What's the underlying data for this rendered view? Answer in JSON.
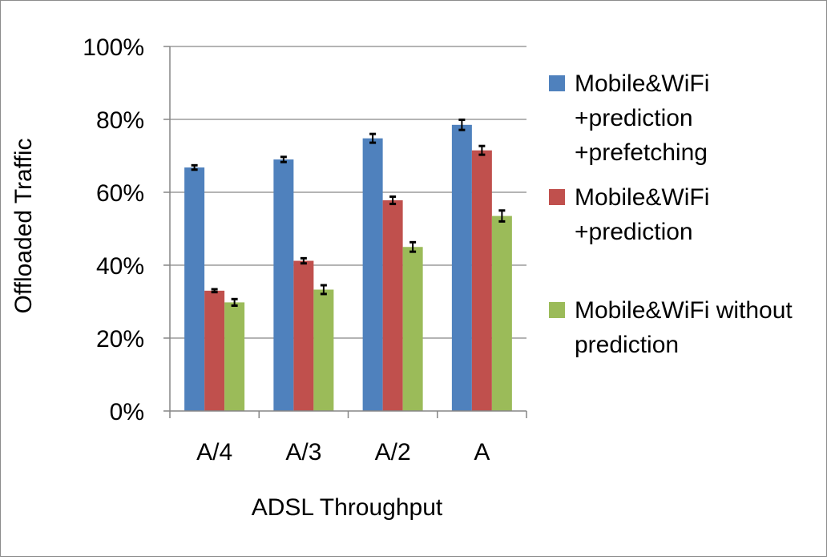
{
  "chart_data": {
    "type": "bar",
    "title": "",
    "xlabel": "ADSL Throughput",
    "ylabel": "Offloaded Traffic",
    "categories": [
      "A/4",
      "A/3",
      "A/2",
      "A"
    ],
    "ylim": [
      0,
      100
    ],
    "yticks": [
      "0%",
      "20%",
      "40%",
      "60%",
      "80%",
      "100%"
    ],
    "ytick_values": [
      0,
      20,
      40,
      60,
      80,
      100
    ],
    "grid": true,
    "legend_position": "right",
    "series": [
      {
        "name": "Mobile&WiFi +prediction +prefetching",
        "legend_lines": [
          "Mobile&WiFi",
          "+prediction",
          "+prefetching"
        ],
        "color": "#4F81BD",
        "values": [
          66.8,
          69.0,
          74.8,
          78.5
        ],
        "error": [
          0.6,
          0.7,
          1.2,
          1.4
        ]
      },
      {
        "name": "Mobile&WiFi +prediction",
        "legend_lines": [
          "Mobile&WiFi",
          "+prediction"
        ],
        "color": "#C0504D",
        "values": [
          33.0,
          41.2,
          57.8,
          71.5
        ],
        "error": [
          0.4,
          0.7,
          1.0,
          1.2
        ]
      },
      {
        "name": "Mobile&WiFi without prediction",
        "legend_lines": [
          "Mobile&WiFi without",
          "prediction"
        ],
        "color": "#9BBB59",
        "values": [
          29.8,
          33.3,
          45.0,
          53.5
        ],
        "error": [
          0.9,
          1.2,
          1.3,
          1.5
        ]
      }
    ]
  }
}
